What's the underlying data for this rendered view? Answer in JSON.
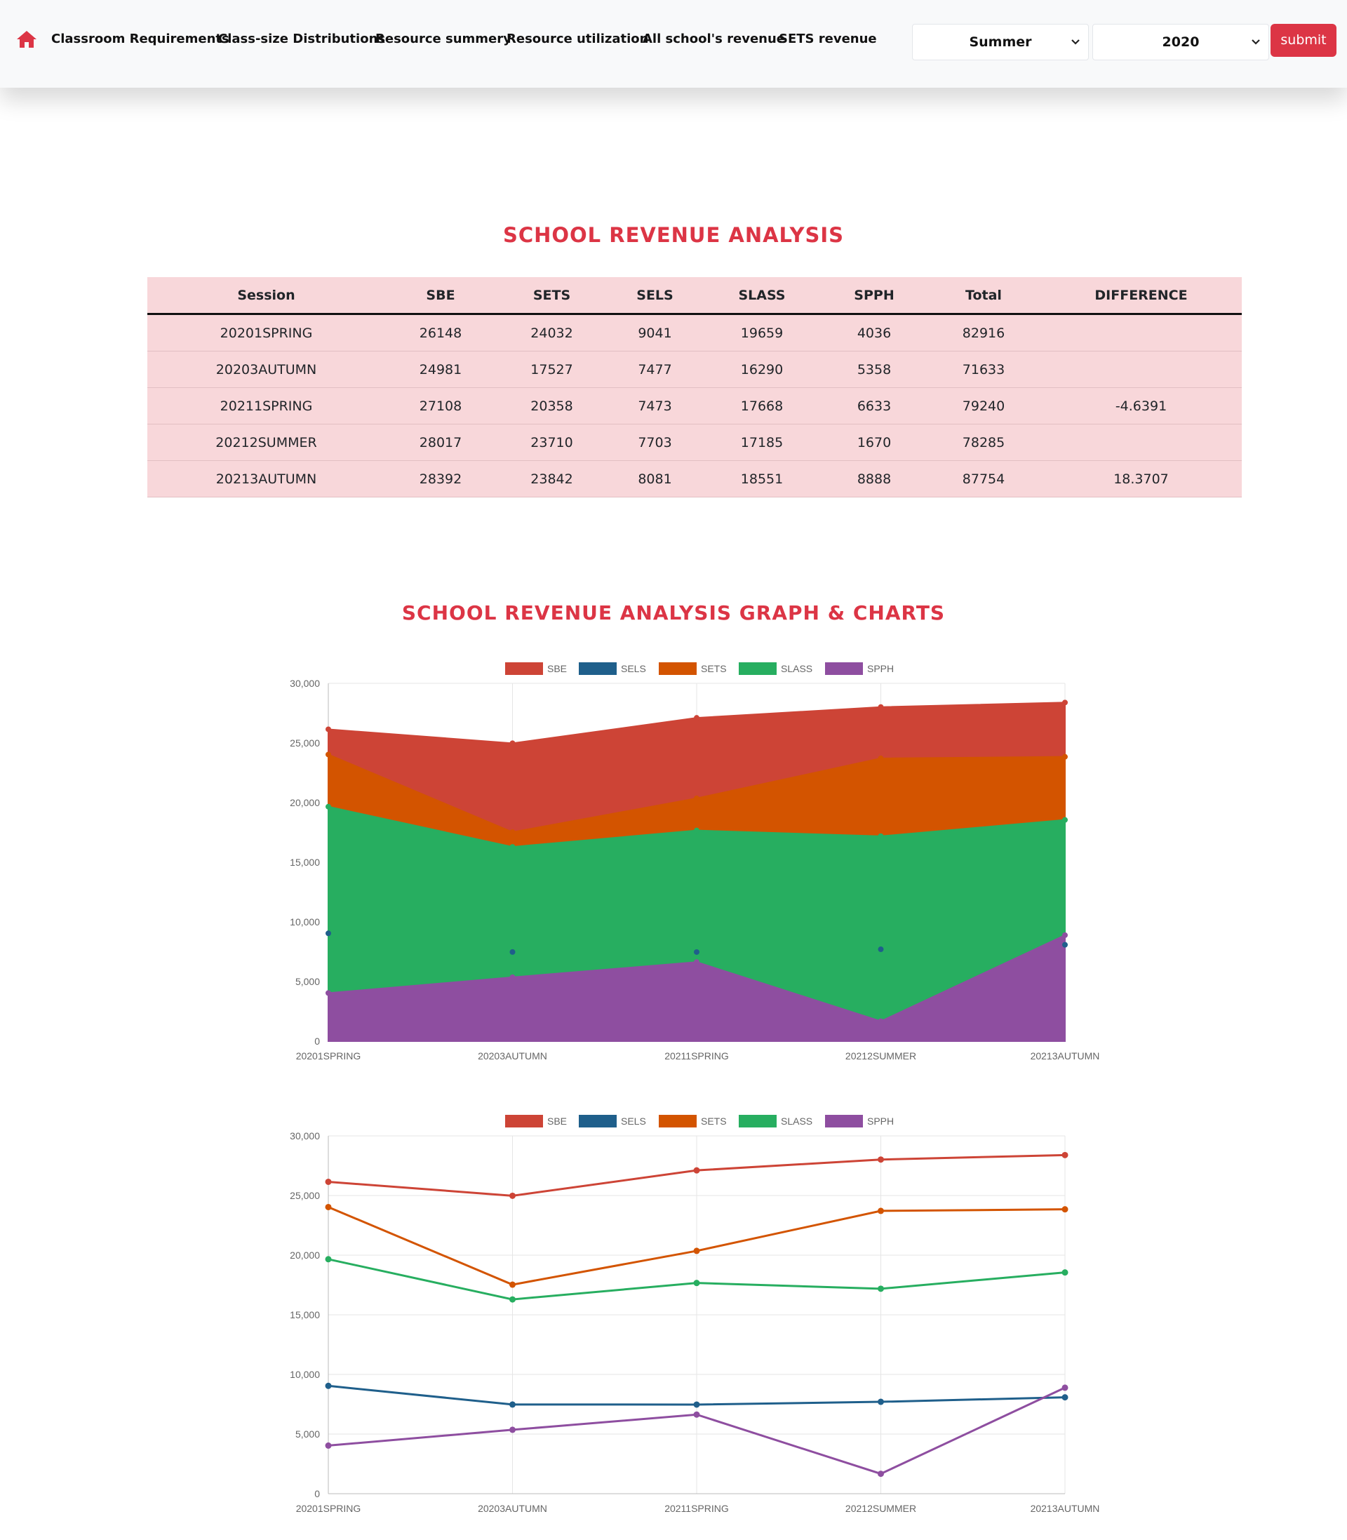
{
  "nav": {
    "links": [
      "Classroom Requirements",
      "Class-size Distributions",
      "Resource summery",
      "Resource utilization",
      "All school's revenue",
      "SETS revenue"
    ],
    "season": "Summer",
    "year": "2020",
    "submit_label": "submit",
    "home_icon": "home-icon",
    "chevron_icon": "chevron-down-icon"
  },
  "colors": {
    "accent": "#dc3545",
    "table_bg": "#f8d7da",
    "SBE": "#cd4436",
    "SELS": "#1f5f8b",
    "SETS": "#d35400",
    "SLASS": "#27ae60",
    "SPPH": "#8e4ea0"
  },
  "table": {
    "title": "SCHOOL REVENUE ANALYSIS",
    "headers": [
      "Session",
      "SBE",
      "SETS",
      "SELS",
      "SLASS",
      "SPPH",
      "Total",
      "DIFFERENCE"
    ],
    "rows": [
      [
        "20201SPRING",
        "26148",
        "24032",
        "9041",
        "19659",
        "4036",
        "82916",
        ""
      ],
      [
        "20203AUTUMN",
        "24981",
        "17527",
        "7477",
        "16290",
        "5358",
        "71633",
        ""
      ],
      [
        "20211SPRING",
        "27108",
        "20358",
        "7473",
        "17668",
        "6633",
        "79240",
        "-4.6391"
      ],
      [
        "20212SUMMER",
        "28017",
        "23710",
        "7703",
        "17185",
        "1670",
        "78285",
        ""
      ],
      [
        "20213AUTUMN",
        "28392",
        "23842",
        "8081",
        "18551",
        "8888",
        "87754",
        "18.3707"
      ]
    ]
  },
  "charts_title": "SCHOOL REVENUE ANALYSIS GRAPH & CHARTS",
  "chart_data": [
    {
      "type": "area",
      "categories": [
        "20201SPRING",
        "20203AUTUMN",
        "20211SPRING",
        "20212SUMMER",
        "20213AUTUMN"
      ],
      "ylim": [
        0,
        30000
      ],
      "yticks": [
        "0",
        "5,000",
        "10,000",
        "15,000",
        "20,000",
        "25,000",
        "30,000"
      ],
      "legend": "top",
      "grid": true,
      "series": [
        {
          "name": "SBE",
          "values": [
            26148,
            24981,
            27108,
            28017,
            28392
          ]
        },
        {
          "name": "SELS",
          "values": [
            9041,
            7477,
            7473,
            7703,
            8081
          ]
        },
        {
          "name": "SETS",
          "values": [
            24032,
            17527,
            20358,
            23710,
            23842
          ]
        },
        {
          "name": "SLASS",
          "values": [
            19659,
            16290,
            17668,
            17185,
            18551
          ]
        },
        {
          "name": "SPPH",
          "values": [
            4036,
            5358,
            6633,
            1670,
            8888
          ]
        }
      ]
    },
    {
      "type": "line",
      "categories": [
        "20201SPRING",
        "20203AUTUMN",
        "20211SPRING",
        "20212SUMMER",
        "20213AUTUMN"
      ],
      "ylim": [
        0,
        30000
      ],
      "yticks": [
        "0",
        "5,000",
        "10,000",
        "15,000",
        "20,000",
        "25,000",
        "30,000"
      ],
      "legend": "top",
      "grid": true,
      "series": [
        {
          "name": "SBE",
          "values": [
            26148,
            24981,
            27108,
            28017,
            28392
          ]
        },
        {
          "name": "SELS",
          "values": [
            9041,
            7477,
            7473,
            7703,
            8081
          ]
        },
        {
          "name": "SETS",
          "values": [
            24032,
            17527,
            20358,
            23710,
            23842
          ]
        },
        {
          "name": "SLASS",
          "values": [
            19659,
            16290,
            17668,
            17185,
            18551
          ]
        },
        {
          "name": "SPPH",
          "values": [
            4036,
            5358,
            6633,
            1670,
            8888
          ]
        }
      ]
    }
  ]
}
